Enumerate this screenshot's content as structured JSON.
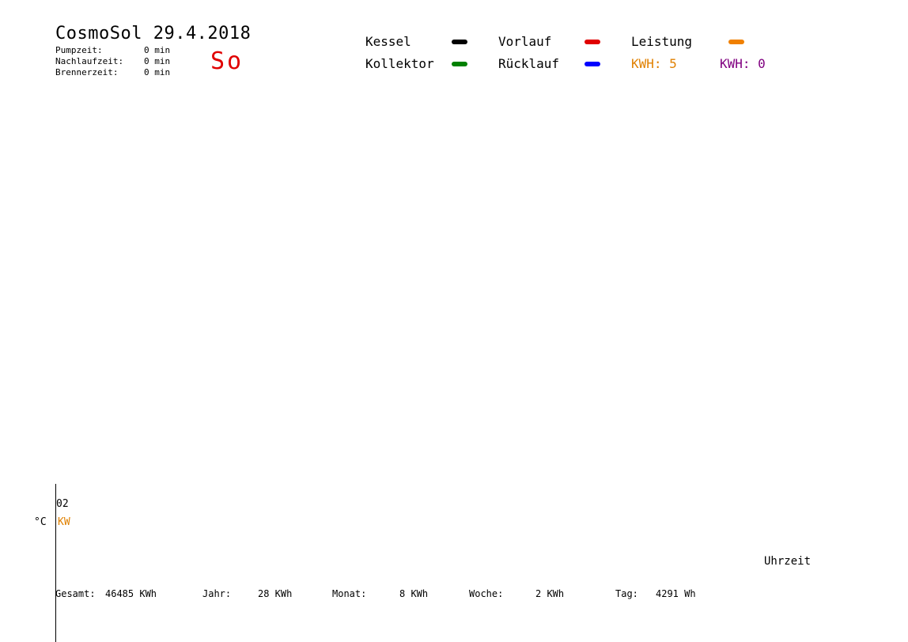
{
  "header": {
    "title": "CosmoSol 29.4.2018",
    "day": "So",
    "stats": [
      {
        "label": "Pumpzeit:",
        "value": "0 min"
      },
      {
        "label": "Nachlaufzeit:",
        "value": "0 min"
      },
      {
        "label": "Brennerzeit:",
        "value": "0 min"
      }
    ]
  },
  "legend": {
    "kessel": {
      "label": "Kessel",
      "color": "#000000"
    },
    "kollektor": {
      "label": "Kollektor",
      "color": "#008000"
    },
    "vorlauf": {
      "label": "Vorlauf",
      "color": "#e00000"
    },
    "ruecklauf": {
      "label": "Rücklauf",
      "color": "#0000ff"
    },
    "leistung": {
      "label": "Leistung",
      "color": "#f08000"
    },
    "kwh_orange": {
      "text": "KWH: 5",
      "color": "#e08000"
    },
    "kwh_purple": {
      "text": "KWH: 0",
      "color": "#800080"
    }
  },
  "axis": {
    "tick_label": "02",
    "unit_temp": "°C",
    "unit_power": "KW",
    "x_label": "Uhrzeit"
  },
  "totals": [
    {
      "label": "Gesamt:",
      "value": "46485 KWh"
    },
    {
      "label": "Jahr:",
      "value": "28 KWh"
    },
    {
      "label": "Monat:",
      "value": "8 KWh"
    },
    {
      "label": "Woche:",
      "value": "2 KWh"
    },
    {
      "label": "Tag:",
      "value": "4291 Wh"
    }
  ],
  "chart_data": {
    "type": "line",
    "title": "CosmoSol 29.4.2018",
    "xlabel": "Uhrzeit",
    "ylabel": "°C",
    "y2label": "KW",
    "x_ticks": [
      "02"
    ],
    "series": [
      {
        "name": "Kessel",
        "color": "#000000",
        "values": []
      },
      {
        "name": "Kollektor",
        "color": "#008000",
        "values": []
      },
      {
        "name": "Vorlauf",
        "color": "#e00000",
        "values": []
      },
      {
        "name": "Rücklauf",
        "color": "#0000ff",
        "values": []
      },
      {
        "name": "Leistung",
        "color": "#f08000",
        "values": []
      }
    ]
  }
}
